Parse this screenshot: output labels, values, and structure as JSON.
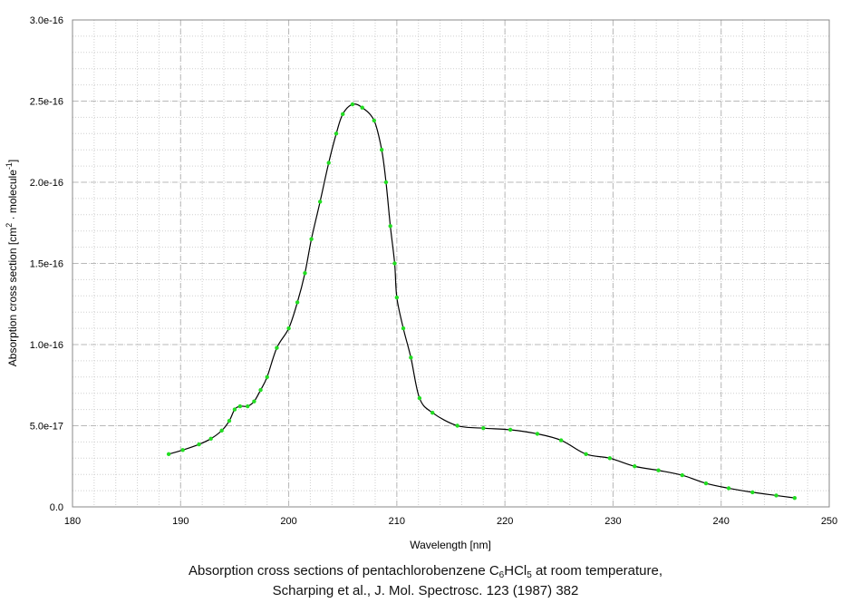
{
  "chart_data": {
    "type": "line",
    "xlabel": "Wavelength [nm]",
    "ylabel": {
      "main": "Absorption cross section [cm",
      "sup1": "2",
      "mid": " · molecule",
      "sup2": "-1",
      "end": "]"
    },
    "xlim": [
      180,
      250
    ],
    "ylim": [
      0,
      3e-16
    ],
    "x_ticks": [
      180,
      190,
      200,
      210,
      220,
      230,
      240,
      250
    ],
    "y_ticks": [
      0,
      5e-17,
      1e-16,
      1.5e-16,
      2e-16,
      2.5e-16,
      3e-16
    ],
    "y_tick_labels": [
      "0.0",
      "5.0e-17",
      "1.0e-16",
      "1.5e-16",
      "2.0e-16",
      "2.5e-16",
      "3.0e-16"
    ],
    "grid": true,
    "line_color": "#000000",
    "marker_color": "#22dd22",
    "points": [
      [
        188.9,
        3.25e-17
      ],
      [
        190.2,
        3.5e-17
      ],
      [
        191.7,
        3.85e-17
      ],
      [
        192.8,
        4.2e-17
      ],
      [
        193.8,
        4.7e-17
      ],
      [
        194.5,
        5.3e-17
      ],
      [
        195.0,
        6e-17
      ],
      [
        195.5,
        6.2e-17
      ],
      [
        196.2,
        6.2e-17
      ],
      [
        196.8,
        6.5e-17
      ],
      [
        197.4,
        7.2e-17
      ],
      [
        198.0,
        8e-17
      ],
      [
        198.9,
        9.8e-17
      ],
      [
        200.0,
        1.1e-16
      ],
      [
        200.8,
        1.26e-16
      ],
      [
        201.5,
        1.44e-16
      ],
      [
        202.1,
        1.65e-16
      ],
      [
        202.9,
        1.88e-16
      ],
      [
        203.7,
        2.12e-16
      ],
      [
        204.4,
        2.3e-16
      ],
      [
        205.0,
        2.42e-16
      ],
      [
        205.9,
        2.48e-16
      ],
      [
        206.8,
        2.46e-16
      ],
      [
        207.9,
        2.38e-16
      ],
      [
        208.6,
        2.2e-16
      ],
      [
        209.0,
        2e-16
      ],
      [
        209.4,
        1.73e-16
      ],
      [
        209.8,
        1.5e-16
      ],
      [
        210.0,
        1.29e-16
      ],
      [
        210.6,
        1.1e-16
      ],
      [
        211.3,
        9.2e-17
      ],
      [
        212.1,
        6.7e-17
      ],
      [
        213.3,
        5.8e-17
      ],
      [
        215.6,
        5e-17
      ],
      [
        218.0,
        4.85e-17
      ],
      [
        220.5,
        4.75e-17
      ],
      [
        223.0,
        4.5e-17
      ],
      [
        225.2,
        4.1e-17
      ],
      [
        227.5,
        3.25e-17
      ],
      [
        229.7,
        3e-17
      ],
      [
        232.0,
        2.5e-17
      ],
      [
        234.2,
        2.25e-17
      ],
      [
        236.4,
        1.95e-17
      ],
      [
        238.6,
        1.45e-17
      ],
      [
        240.7,
        1.15e-17
      ],
      [
        242.9,
        9e-18
      ],
      [
        245.1,
        7e-18
      ],
      [
        246.8,
        5.5e-18
      ]
    ]
  },
  "caption": {
    "line1_a": "Absorption cross sections of pentachlorobenzene C",
    "line1_sub1": "6",
    "line1_b": "HCl",
    "line1_sub2": "5",
    "line1_c": " at room temperature,",
    "line2": "Scharping et al., J. Mol. Spectrosc. 123 (1987) 382"
  }
}
